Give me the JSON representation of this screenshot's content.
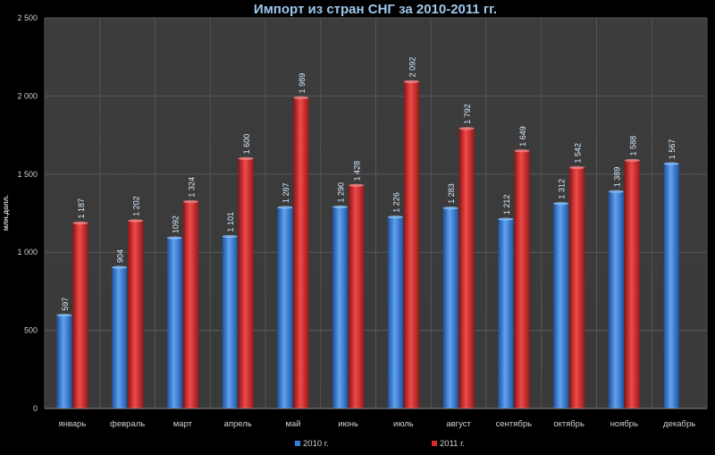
{
  "chart_data": {
    "type": "bar",
    "title": "Импорт из стран СНГ за 2010-2011 гг.",
    "ylabel": "млн.долл.",
    "xlabel": "",
    "ylim": [
      0,
      2500
    ],
    "yticks": [
      0,
      500,
      1000,
      1500,
      2000,
      2500
    ],
    "ytick_labels": [
      "0",
      "500",
      "1 000",
      "1 500",
      "2 000",
      "2 500"
    ],
    "grid": true,
    "legend_position": "bottom",
    "categories": [
      "январь",
      "февраль",
      "март",
      "апрель",
      "май",
      "июнь",
      "июль",
      "август",
      "сентябрь",
      "октябрь",
      "ноябрь",
      "декабрь"
    ],
    "series": [
      {
        "name": "2010 г.",
        "color": "#3a7fd6",
        "values": [
          597,
          904,
          1092,
          1101,
          1287,
          1290,
          1226,
          1283,
          1212,
          1312,
          1389,
          1567
        ],
        "labels": [
          "597",
          "904",
          "1092",
          "1 101",
          "1 287",
          "1 290",
          "1 226",
          "1 283",
          "1 212",
          "1 312",
          "1 389",
          "1 567"
        ]
      },
      {
        "name": "2011 г.",
        "color": "#d42a2a",
        "values": [
          1187,
          1202,
          1324,
          1600,
          1989,
          1428,
          2092,
          1792,
          1649,
          1542,
          1588,
          null
        ],
        "labels": [
          "1 187",
          "1 202",
          "1 324",
          "1 600",
          "1 989",
          "1 428",
          "2 092",
          "1 792",
          "1 649",
          "1 542",
          "1 588",
          null
        ]
      }
    ]
  }
}
